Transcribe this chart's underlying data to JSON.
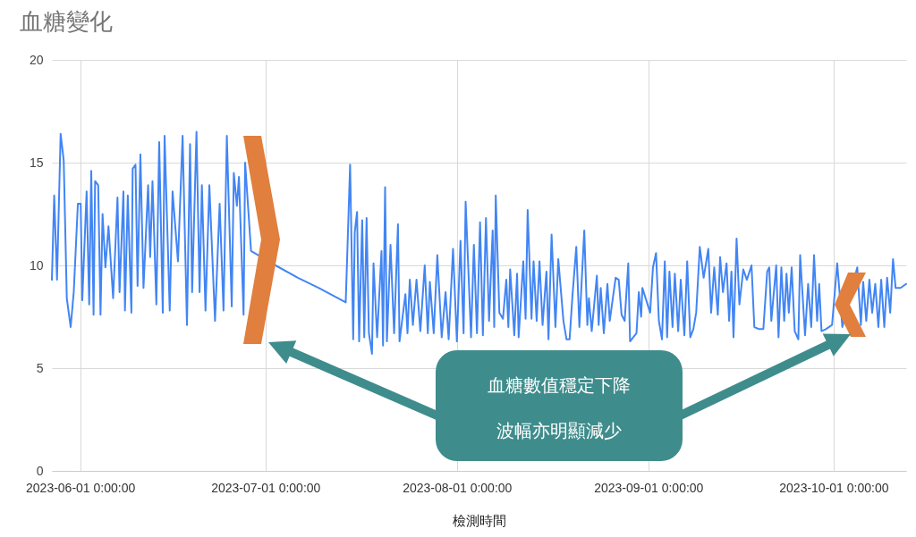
{
  "chart_data": {
    "type": "line",
    "title": "血糖變化",
    "xlabel": "檢測時間",
    "color": "#4285f4",
    "x": [
      "2023-05-27T10:00",
      "2023-05-27T19:00",
      "2023-05-28T06:00",
      "2023-05-28T20:00",
      "2023-05-29T08:00",
      "2023-05-29T20:00",
      "2023-05-30T11:00",
      "2023-05-30T23:00",
      "2023-05-31T15:00",
      "2023-06-01T02:00",
      "2023-06-01T08:00",
      "2023-06-02T01:00",
      "2023-06-02T11:00",
      "2023-06-02T19:00",
      "2023-06-03T04:00",
      "2023-06-03T10:00",
      "2023-06-03T22:00",
      "2023-06-04T07:00",
      "2023-06-04T15:00",
      "2023-06-05T02:00",
      "2023-06-05T14:00",
      "2023-06-06T08:00",
      "2023-06-07T01:00",
      "2023-06-07T09:00",
      "2023-06-08T00:00",
      "2023-06-08T06:00",
      "2023-06-08T17:00",
      "2023-06-09T07:00",
      "2023-06-09T12:00",
      "2023-06-09T23:00",
      "2023-06-10T07:00",
      "2023-06-10T18:00",
      "2023-06-11T06:00",
      "2023-06-12T00:00",
      "2023-06-12T08:00",
      "2023-06-12T17:00",
      "2023-06-13T08:00",
      "2023-06-13T19:00",
      "2023-06-14T09:00",
      "2023-06-14T16:00",
      "2023-06-15T12:00",
      "2023-06-15T23:00",
      "2023-06-16T20:00",
      "2023-06-17T14:00",
      "2023-06-18T07:00",
      "2023-06-18T19:00",
      "2023-06-19T03:00",
      "2023-06-19T20:00",
      "2023-06-20T08:00",
      "2023-06-20T17:00",
      "2023-06-21T07:00",
      "2023-06-21T22:00",
      "2023-06-22T20:00",
      "2023-06-23T14:00",
      "2023-06-24T05:00",
      "2023-06-24T18:00",
      "2023-06-25T13:00",
      "2023-06-25T21:00",
      "2023-06-26T09:00",
      "2023-06-26T17:00",
      "2023-06-27T11:00",
      "2023-06-27T17:00",
      "2023-06-28T16:00",
      "2023-07-02T15:00",
      "2023-07-06T06:00",
      "2023-07-09T16:00",
      "2023-07-14T00:00",
      "2023-07-14T17:00",
      "2023-07-15T05:00",
      "2023-07-15T11:00",
      "2023-07-15T20:00",
      "2023-07-16T04:00",
      "2023-07-16T16:00",
      "2023-07-17T00:00",
      "2023-07-17T09:00",
      "2023-07-17T18:00",
      "2023-07-18T06:00",
      "2023-07-18T12:00",
      "2023-07-19T02:00",
      "2023-07-19T19:00",
      "2023-07-20T01:00",
      "2023-07-20T09:00",
      "2023-07-20T16:00",
      "2023-07-21T06:00",
      "2023-07-21T20:00",
      "2023-07-22T11:00",
      "2023-07-22T17:00",
      "2023-07-23T16:00",
      "2023-07-24T00:00",
      "2023-07-24T09:00",
      "2023-07-24T21:00",
      "2023-07-25T11:00",
      "2023-07-26T02:00",
      "2023-07-26T19:00",
      "2023-07-27T07:00",
      "2023-07-27T15:00",
      "2023-07-28T06:00",
      "2023-07-28T20:00",
      "2023-07-29T13:00",
      "2023-07-30T04:00",
      "2023-07-30T16:00",
      "2023-07-31T09:00",
      "2023-08-01T00:00",
      "2023-08-01T14:00",
      "2023-08-02T02:00",
      "2023-08-02T10:00",
      "2023-08-03T07:00",
      "2023-08-03T18:00",
      "2023-08-04T06:00",
      "2023-08-04T18:00",
      "2023-08-05T05:00",
      "2023-08-05T17:00",
      "2023-08-06T05:00",
      "2023-08-06T19:00",
      "2023-08-07T01:00",
      "2023-08-07T07:00",
      "2023-08-07T21:00",
      "2023-08-08T11:00",
      "2023-08-09T00:00",
      "2023-08-09T08:00",
      "2023-08-09T15:00",
      "2023-08-10T07:00",
      "2023-08-10T18:00",
      "2023-08-11T00:00",
      "2023-08-11T18:00",
      "2023-08-12T03:00",
      "2023-08-12T11:00",
      "2023-08-13T02:00",
      "2023-08-13T10:00",
      "2023-08-13T22:00",
      "2023-08-14T09:00",
      "2023-08-14T21:00",
      "2023-08-15T12:00",
      "2023-08-15T20:00",
      "2023-08-16T08:00",
      "2023-08-16T23:00",
      "2023-08-17T10:00",
      "2023-08-18T06:00",
      "2023-08-18T18:00",
      "2023-08-19T06:00",
      "2023-08-19T17:00",
      "2023-08-20T08:00",
      "2023-08-20T20:00",
      "2023-08-21T15:00",
      "2023-08-22T03:00",
      "2023-08-22T09:00",
      "2023-08-22T20:00",
      "2023-08-23T16:00",
      "2023-08-23T23:00",
      "2023-08-24T07:00",
      "2023-08-24T19:00",
      "2023-08-25T09:00",
      "2023-08-25T18:00",
      "2023-08-26T17:00",
      "2023-08-27T05:00",
      "2023-08-27T16:00",
      "2023-08-28T04:00",
      "2023-08-28T18:00",
      "2023-08-29T01:00",
      "2023-08-30T02:00",
      "2023-08-30T11:00",
      "2023-08-30T20:00",
      "2023-08-31T01:00",
      "2023-09-01T07:00",
      "2023-09-01T18:00",
      "2023-09-02T06:00",
      "2023-09-02T17:00",
      "2023-09-03T05:00",
      "2023-09-03T16:00",
      "2023-09-04T01:00",
      "2023-09-04T10:00",
      "2023-09-04T22:00",
      "2023-09-05T07:00",
      "2023-09-05T20:00",
      "2023-09-06T06:00",
      "2023-09-06T20:00",
      "2023-09-07T07:00",
      "2023-09-07T19:00",
      "2023-09-08T07:00",
      "2023-09-08T18:00",
      "2023-09-09T08:00",
      "2023-09-09T23:00",
      "2023-09-10T17:00",
      "2023-09-11T04:00",
      "2023-09-11T16:00",
      "2023-09-12T06:00",
      "2023-09-12T15:00",
      "2023-09-13T02:00",
      "2023-09-13T16:00",
      "2023-09-14T02:00",
      "2023-09-14T11:00",
      "2023-09-14T19:00",
      "2023-09-15T07:00",
      "2023-09-15T18:00",
      "2023-09-16T09:00",
      "2023-09-16T23:00",
      "2023-09-17T17:00",
      "2023-09-18T04:00",
      "2023-09-18T22:00",
      "2023-09-19T15:00",
      "2023-09-20T06:00",
      "2023-09-20T14:00",
      "2023-09-20T22:00",
      "2023-09-21T17:00",
      "2023-09-22T02:00",
      "2023-09-22T13:00",
      "2023-09-23T00:00",
      "2023-09-23T09:00",
      "2023-09-23T18:00",
      "2023-09-24T05:00",
      "2023-09-24T17:00",
      "2023-09-25T07:00",
      "2023-09-25T14:00",
      "2023-09-26T09:00",
      "2023-09-26T21:00",
      "2023-09-27T09:00",
      "2023-09-27T20:00",
      "2023-09-28T08:00",
      "2023-09-28T16:00",
      "2023-09-29T01:00",
      "2023-09-29T18:00",
      "2023-09-30T18:00",
      "2023-10-01T14:00",
      "2023-10-02T10:00",
      "2023-10-04T20:00",
      "2023-10-05T10:00",
      "2023-10-05T19:00",
      "2023-10-06T07:00",
      "2023-10-06T19:00",
      "2023-10-07T06:00",
      "2023-10-07T18:00",
      "2023-10-08T06:00",
      "2023-10-08T17:00",
      "2023-10-09T05:00",
      "2023-10-09T16:00",
      "2023-10-10T04:00",
      "2023-10-10T15:00",
      "2023-10-11T01:00",
      "2023-10-11T20:00",
      "2023-10-12T18:00"
    ],
    "values": [
      9.3,
      13.4,
      9.3,
      16.4,
      15.1,
      8.4,
      7.0,
      8.7,
      13.0,
      13.0,
      8.3,
      13.6,
      8.1,
      14.6,
      7.6,
      14.1,
      13.9,
      7.6,
      12.5,
      9.9,
      11.9,
      8.4,
      13.3,
      8.7,
      13.6,
      7.8,
      13.4,
      7.7,
      14.7,
      14.9,
      9.0,
      15.4,
      8.9,
      13.9,
      10.4,
      14.1,
      8.1,
      16.0,
      7.7,
      16.3,
      7.8,
      13.6,
      10.2,
      16.3,
      7.1,
      15.9,
      8.7,
      16.5,
      8.7,
      13.9,
      7.8,
      13.9,
      7.3,
      13.0,
      7.8,
      16.3,
      8.0,
      14.5,
      12.9,
      14.3,
      7.6,
      15.0,
      10.7,
      10.0,
      9.4,
      8.9,
      8.2,
      14.9,
      6.4,
      11.6,
      12.6,
      6.3,
      12.2,
      6.5,
      12.3,
      6.7,
      5.7,
      10.1,
      6.5,
      10.7,
      6.1,
      13.8,
      6.3,
      11.0,
      6.7,
      12.0,
      6.3,
      8.6,
      6.7,
      9.3,
      7.1,
      9.3,
      6.8,
      10.0,
      6.7,
      9.2,
      6.7,
      10.5,
      6.5,
      8.7,
      6.4,
      10.8,
      6.3,
      11.2,
      6.7,
      13.1,
      6.5,
      11.0,
      6.7,
      12.1,
      6.6,
      12.3,
      7.3,
      11.7,
      7.0,
      13.4,
      7.7,
      7.4,
      9.3,
      7.0,
      9.8,
      6.6,
      9.6,
      6.5,
      10.2,
      7.4,
      12.7,
      7.4,
      10.2,
      7.3,
      10.2,
      7.1,
      9.7,
      6.4,
      11.5,
      7.0,
      10.3,
      7.3,
      6.4,
      6.4,
      8.5,
      10.9,
      7.0,
      11.7,
      7.1,
      8.4,
      6.8,
      9.5,
      7.1,
      8.9,
      6.7,
      9.1,
      7.3,
      9.4,
      9.3,
      7.6,
      7.3,
      10.1,
      6.3,
      6.7,
      8.7,
      7.5,
      8.9,
      7.7,
      9.9,
      10.6,
      7.3,
      6.4,
      10.2,
      6.5,
      9.7,
      7.0,
      9.6,
      6.8,
      9.3,
      6.6,
      10.2,
      6.5,
      6.9,
      7.7,
      10.9,
      9.4,
      10.8,
      7.7,
      9.9,
      7.6,
      10.4,
      8.7,
      10.1,
      7.3,
      9.7,
      6.5,
      11.3,
      8.1,
      9.8,
      9.3,
      10.0,
      7.0,
      6.9,
      6.9,
      9.7,
      9.9,
      7.3,
      10.0,
      6.5,
      9.9,
      7.3,
      9.6,
      7.7,
      9.9,
      6.8,
      6.4,
      10.5,
      6.6,
      9.1,
      7.0,
      10.5,
      7.3,
      9.1,
      6.8,
      6.9,
      7.1,
      10.1,
      7.0,
      9.9,
      7.1,
      9.2,
      7.3,
      9.3,
      7.7,
      9.1,
      7.0,
      9.3,
      7.0,
      9.4,
      7.7,
      10.3,
      8.9,
      8.9,
      9.1
    ],
    "xlim": [
      "2023-05-27T10:00",
      "2023-10-12T18:00"
    ],
    "xticks": [
      {
        "value": "2023-06-01",
        "label": "2023-06-01 0:00:00"
      },
      {
        "value": "2023-07-01",
        "label": "2023-07-01 0:00:00"
      },
      {
        "value": "2023-08-01",
        "label": "2023-08-01 0:00:00"
      },
      {
        "value": "2023-09-01",
        "label": "2023-09-01 0:00:00"
      },
      {
        "value": "2023-10-01",
        "label": "2023-10-01 0:00:00"
      }
    ],
    "ylim": [
      0,
      20
    ],
    "yticks": [
      0,
      5,
      10,
      15,
      20
    ],
    "grid": true,
    "annotations": [
      "血糖數值穩定下降",
      "波幅亦明顯減少"
    ]
  }
}
